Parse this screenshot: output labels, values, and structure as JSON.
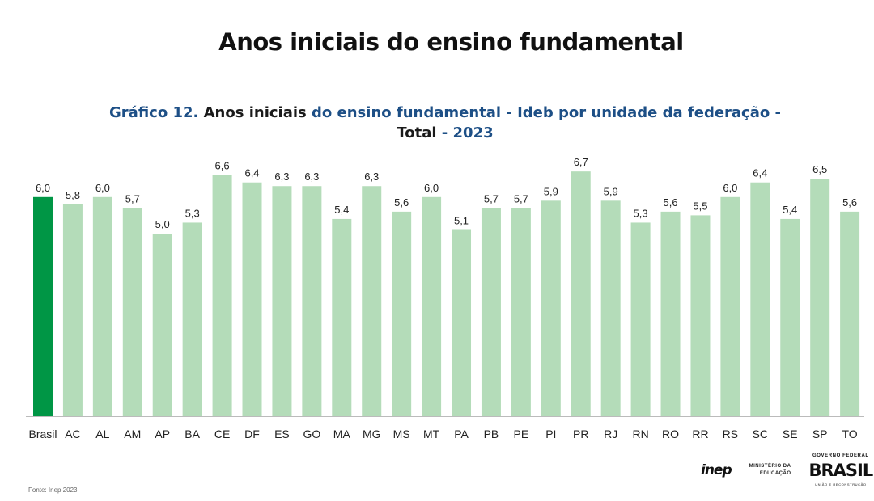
{
  "header": {
    "title": "Anos iniciais do ensino fundamental"
  },
  "chart_data": {
    "type": "bar",
    "title_parts": [
      {
        "text": "Gráfico 12.",
        "color": "#1d4f86"
      },
      {
        "text": " Anos iniciais",
        "color": "#1a1a1a"
      },
      {
        "text": " do ensino fundamental - Ideb por unidade da federação -",
        "color": "#1d4f86"
      },
      {
        "text": "Total",
        "color": "#1a1a1a"
      },
      {
        "text": " - 2023",
        "color": "#1d4f86"
      }
    ],
    "categories": [
      "Brasil",
      "AC",
      "AL",
      "AM",
      "AP",
      "BA",
      "CE",
      "DF",
      "ES",
      "GO",
      "MA",
      "MG",
      "MS",
      "MT",
      "PA",
      "PB",
      "PE",
      "PI",
      "PR",
      "RJ",
      "RN",
      "RO",
      "RR",
      "RS",
      "SC",
      "SE",
      "SP",
      "TO"
    ],
    "values": [
      6.0,
      5.8,
      6.0,
      5.7,
      5.0,
      5.3,
      6.6,
      6.4,
      6.3,
      6.3,
      5.4,
      6.3,
      5.6,
      6.0,
      5.1,
      5.7,
      5.7,
      5.9,
      6.7,
      5.9,
      5.3,
      5.6,
      5.5,
      6.0,
      6.4,
      5.4,
      6.5,
      5.6
    ],
    "data_labels": [
      "6,0",
      "5,8",
      "6,0",
      "5,7",
      "5,0",
      "5,3",
      "6,6",
      "6,4",
      "6,3",
      "6,3",
      "5,4",
      "6,3",
      "5,6",
      "6,0",
      "5,1",
      "5,7",
      "5,7",
      "5,9",
      "6,7",
      "5,9",
      "5,3",
      "5,6",
      "5,5",
      "6,0",
      "6,4",
      "5,4",
      "6,5",
      "5,6"
    ],
    "colors": {
      "highlight": "#009645",
      "default": "#b4dcb9"
    },
    "highlight_category": "Brasil",
    "ylim": [
      0,
      7
    ],
    "grid": false,
    "xlabel": "",
    "ylabel": ""
  },
  "footer": {
    "source": "Fonte: Inep 2023.",
    "logos": {
      "inep": "inep",
      "mec_line1": "MINISTÉRIO DA",
      "mec_line2": "EDUCAÇÃO",
      "gov_top": "GOVERNO FEDERAL",
      "gov_main": "BRASIL",
      "gov_sub": "UNIÃO E RECONSTRUÇÃO"
    }
  }
}
